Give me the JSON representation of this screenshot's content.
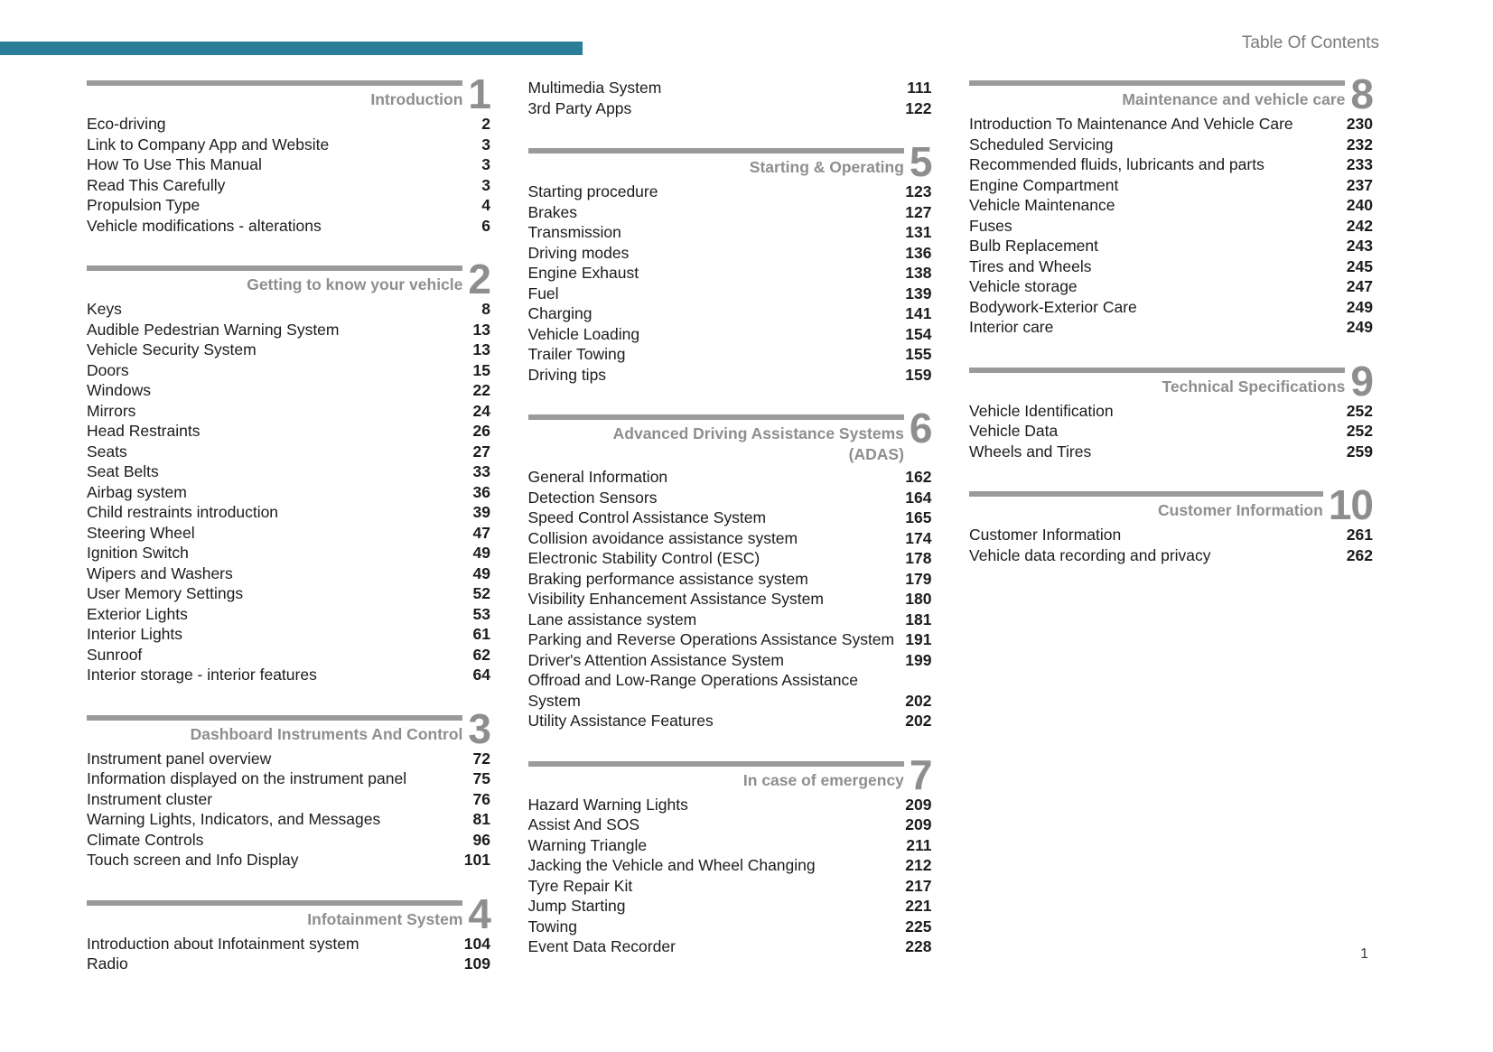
{
  "page": {
    "header_title": "Table Of Contents",
    "footer_page_number": "1"
  },
  "colors": {
    "accent": "#2A7E98",
    "section_gray": "#8E8E8E",
    "rule_gray": "#9A9A9A",
    "text": "#1C1C1C",
    "header_text": "#7B7B7B"
  },
  "columns": [
    {
      "blocks": [
        {
          "number": "1",
          "title_lines": [
            "Introduction"
          ],
          "entries": [
            {
              "label": "Eco-driving",
              "page": "2"
            },
            {
              "label": "Link to Company App and Website",
              "page": "3"
            },
            {
              "label": "How To Use This Manual",
              "page": "3"
            },
            {
              "label": "Read This Carefully",
              "page": "3"
            },
            {
              "label": "Propulsion Type",
              "page": "4"
            },
            {
              "label": "Vehicle modifications - alterations",
              "page": "6"
            }
          ]
        },
        {
          "number": "2",
          "title_lines": [
            "Getting to know your vehicle"
          ],
          "entries": [
            {
              "label": "Keys",
              "page": "8"
            },
            {
              "label": "Audible Pedestrian Warning System",
              "page": "13"
            },
            {
              "label": "Vehicle Security System",
              "page": "13"
            },
            {
              "label": "Doors",
              "page": "15"
            },
            {
              "label": "Windows",
              "page": "22"
            },
            {
              "label": "Mirrors",
              "page": "24"
            },
            {
              "label": "Head Restraints",
              "page": "26"
            },
            {
              "label": "Seats",
              "page": "27"
            },
            {
              "label": "Seat Belts",
              "page": "33"
            },
            {
              "label": "Airbag system",
              "page": "36"
            },
            {
              "label": "Child restraints introduction",
              "page": "39"
            },
            {
              "label": "Steering Wheel",
              "page": "47"
            },
            {
              "label": "Ignition Switch",
              "page": "49"
            },
            {
              "label": "Wipers and Washers",
              "page": "49"
            },
            {
              "label": "User Memory Settings",
              "page": "52"
            },
            {
              "label": "Exterior Lights",
              "page": "53"
            },
            {
              "label": "Interior Lights",
              "page": "61"
            },
            {
              "label": "Sunroof",
              "page": "62"
            },
            {
              "label": "Interior storage - interior features",
              "page": "64"
            }
          ]
        },
        {
          "number": "3",
          "title_lines": [
            "Dashboard Instruments And Control"
          ],
          "entries": [
            {
              "label": "Instrument panel overview",
              "page": "72"
            },
            {
              "label": "Information displayed on the instrument panel",
              "page": "75"
            },
            {
              "label": "Instrument cluster",
              "page": "76"
            },
            {
              "label": "Warning Lights, Indicators, and Messages",
              "page": "81"
            },
            {
              "label": "Climate Controls",
              "page": "96"
            },
            {
              "label": "Touch screen and Info Display",
              "page": "101"
            }
          ]
        },
        {
          "number": "4",
          "title_lines": [
            "Infotainment System"
          ],
          "entries": [
            {
              "label": "Introduction about Infotainment system",
              "page": "104"
            },
            {
              "label": "Radio",
              "page": "109"
            }
          ]
        }
      ]
    },
    {
      "blocks": [
        {
          "number": "",
          "title_lines": [],
          "entries": [
            {
              "label": "Multimedia System",
              "page": "111"
            },
            {
              "label": "3rd Party Apps",
              "page": "122"
            }
          ]
        },
        {
          "number": "5",
          "title_lines": [
            "Starting & Operating"
          ],
          "entries": [
            {
              "label": "Starting procedure",
              "page": "123"
            },
            {
              "label": "Brakes",
              "page": "127"
            },
            {
              "label": "Transmission",
              "page": "131"
            },
            {
              "label": "Driving modes",
              "page": "136"
            },
            {
              "label": "Engine Exhaust",
              "page": "138"
            },
            {
              "label": "Fuel",
              "page": "139"
            },
            {
              "label": "Charging",
              "page": "141"
            },
            {
              "label": "Vehicle Loading",
              "page": "154"
            },
            {
              "label": "Trailer Towing",
              "page": "155"
            },
            {
              "label": "Driving tips",
              "page": "159"
            }
          ]
        },
        {
          "number": "6",
          "title_lines": [
            "Advanced Driving Assistance Systems",
            "(ADAS)"
          ],
          "entries": [
            {
              "label": "General Information",
              "page": "162"
            },
            {
              "label": "Detection Sensors",
              "page": "164"
            },
            {
              "label": "Speed Control Assistance System",
              "page": "165"
            },
            {
              "label": "Collision avoidance assistance system",
              "page": "174"
            },
            {
              "label": "Electronic Stability Control (ESC)",
              "page": "178"
            },
            {
              "label": "Braking performance assistance system",
              "page": "179"
            },
            {
              "label": "Visibility Enhancement Assistance System",
              "page": "180"
            },
            {
              "label": "Lane assistance system",
              "page": "181"
            },
            {
              "label": "Parking and Reverse Operations Assistance System",
              "page": "191"
            },
            {
              "label": "Driver's Attention Assistance System",
              "page": "199"
            },
            {
              "label": "Offroad and Low-Range Operations Assistance System",
              "page": "202"
            },
            {
              "label": "Utility Assistance Features",
              "page": "202"
            }
          ]
        },
        {
          "number": "7",
          "title_lines": [
            "In case of emergency"
          ],
          "entries": [
            {
              "label": "Hazard Warning Lights",
              "page": "209"
            },
            {
              "label": "Assist And SOS",
              "page": "209"
            },
            {
              "label": "Warning Triangle",
              "page": "211"
            },
            {
              "label": "Jacking the Vehicle and Wheel Changing",
              "page": "212"
            },
            {
              "label": "Tyre Repair Kit",
              "page": "217"
            },
            {
              "label": "Jump Starting",
              "page": "221"
            },
            {
              "label": "Towing",
              "page": "225"
            },
            {
              "label": "Event Data Recorder",
              "page": "228"
            }
          ]
        }
      ]
    },
    {
      "blocks": [
        {
          "number": "8",
          "title_lines": [
            "Maintenance and vehicle care"
          ],
          "entries": [
            {
              "label": "Introduction To Maintenance And Vehicle Care",
              "page": "230"
            },
            {
              "label": "Scheduled Servicing",
              "page": "232"
            },
            {
              "label": "Recommended fluids, lubricants and parts",
              "page": "233"
            },
            {
              "label": "Engine Compartment",
              "page": "237"
            },
            {
              "label": "Vehicle Maintenance",
              "page": "240"
            },
            {
              "label": "Fuses",
              "page": "242"
            },
            {
              "label": "Bulb Replacement",
              "page": "243"
            },
            {
              "label": "Tires and Wheels",
              "page": "245"
            },
            {
              "label": "Vehicle storage",
              "page": "247"
            },
            {
              "label": "Bodywork-Exterior Care",
              "page": "249"
            },
            {
              "label": "Interior care",
              "page": "249"
            }
          ]
        },
        {
          "number": "9",
          "title_lines": [
            "Technical Specifications"
          ],
          "entries": [
            {
              "label": "Vehicle Identification",
              "page": "252"
            },
            {
              "label": "Vehicle Data",
              "page": "252"
            },
            {
              "label": "Wheels and Tires",
              "page": "259"
            }
          ]
        },
        {
          "number": "10",
          "title_lines": [
            "Customer Information"
          ],
          "entries": [
            {
              "label": "Customer Information",
              "page": "261"
            },
            {
              "label": "Vehicle data recording and privacy",
              "page": "262"
            }
          ]
        }
      ]
    }
  ]
}
